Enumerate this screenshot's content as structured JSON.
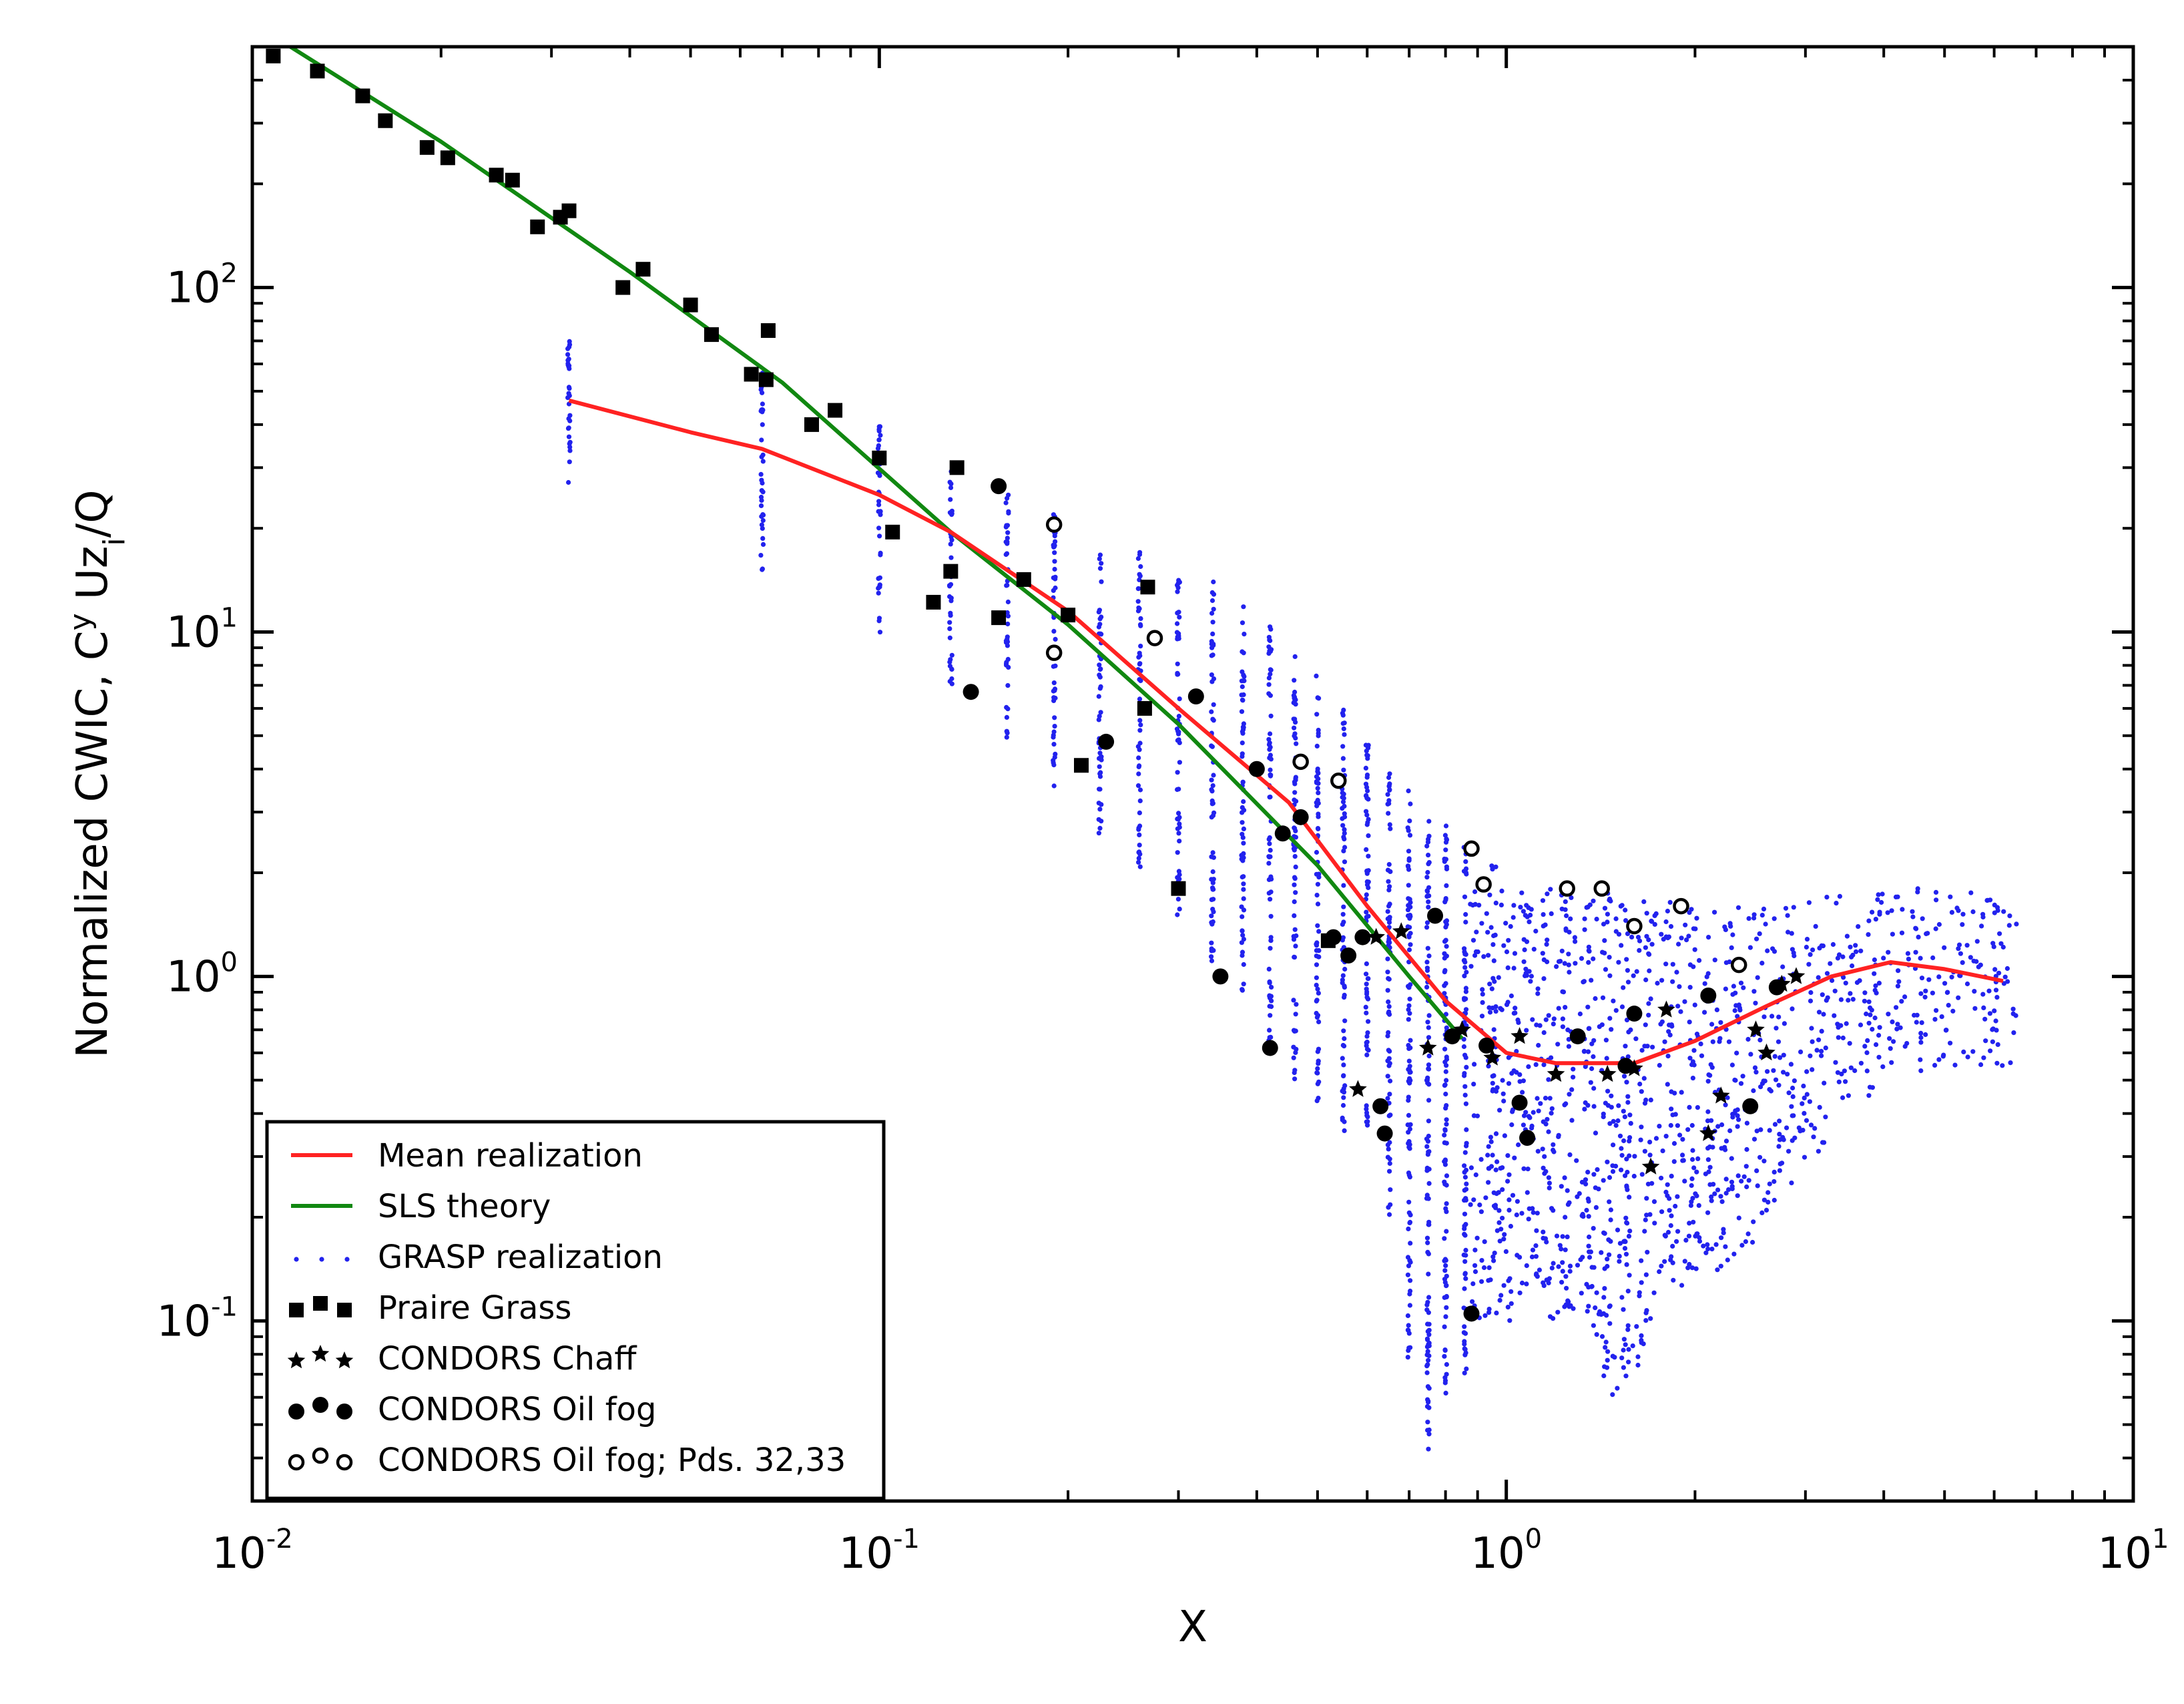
{
  "chart_data": {
    "type": "scatter",
    "xscale": "log",
    "yscale": "log",
    "xlim": [
      0.01,
      10
    ],
    "ylim": [
      0.03,
      500
    ],
    "xlabel": "X",
    "ylabel": {
      "prefix": "Normalized CWIC, C",
      "sup": "y",
      "mid": " Uz",
      "sub": "i",
      "suffix": "/Q"
    },
    "xticks": [
      {
        "value": 0.01,
        "base": "10",
        "exp": "-2"
      },
      {
        "value": 0.1,
        "base": "10",
        "exp": "-1"
      },
      {
        "value": 1,
        "base": "10",
        "exp": "0"
      },
      {
        "value": 10,
        "base": "10",
        "exp": "1"
      }
    ],
    "yticks": [
      {
        "value": 0.1,
        "base": "10",
        "exp": "-1"
      },
      {
        "value": 1,
        "base": "10",
        "exp": "0"
      },
      {
        "value": 10,
        "base": "10",
        "exp": "1"
      },
      {
        "value": 100,
        "base": "10",
        "exp": "2"
      }
    ],
    "legend": {
      "placement": "lower-left",
      "entries": [
        {
          "label": "Mean realization",
          "kind": "line",
          "color": "#ff2222"
        },
        {
          "label": "SLS theory",
          "kind": "line",
          "color": "#118811"
        },
        {
          "label": "GRASP realization",
          "kind": "dots",
          "color": "#2222ee"
        },
        {
          "label": "Praire Grass",
          "kind": "square",
          "color": "#000000"
        },
        {
          "label": "CONDORS Chaff",
          "kind": "star",
          "color": "#000000"
        },
        {
          "label": "CONDORS Oil fog",
          "kind": "circle",
          "color": "#000000"
        },
        {
          "label": "CONDORS Oil fog; Pds. 32,33",
          "kind": "open-circle",
          "color": "#000000"
        }
      ]
    },
    "series": [
      {
        "name": "SLS theory",
        "kind": "line",
        "color": "#118811",
        "points": [
          [
            0.0115,
            500
          ],
          [
            0.02,
            265
          ],
          [
            0.04,
            111
          ],
          [
            0.07,
            53
          ],
          [
            0.13,
            19.5
          ],
          [
            0.2,
            10.5
          ],
          [
            0.3,
            5.4
          ],
          [
            0.5,
            2.1
          ],
          [
            0.7,
            1.0
          ],
          [
            0.85,
            0.66
          ]
        ]
      },
      {
        "name": "Mean realization",
        "kind": "line",
        "color": "#ff2222",
        "points": [
          [
            0.032,
            47
          ],
          [
            0.05,
            38
          ],
          [
            0.065,
            34
          ],
          [
            0.1,
            25
          ],
          [
            0.13,
            19.5
          ],
          [
            0.2,
            11.5
          ],
          [
            0.3,
            6.0
          ],
          [
            0.45,
            3.2
          ],
          [
            0.6,
            1.6
          ],
          [
            0.8,
            0.85
          ],
          [
            1.0,
            0.6
          ],
          [
            1.2,
            0.56
          ],
          [
            1.6,
            0.56
          ],
          [
            2.0,
            0.65
          ],
          [
            2.6,
            0.82
          ],
          [
            3.3,
            1.0
          ],
          [
            4.1,
            1.1
          ],
          [
            5.0,
            1.05
          ],
          [
            6.2,
            0.97
          ]
        ]
      },
      {
        "name": "GRASP realization",
        "kind": "dots",
        "color": "#2222ee",
        "columns": [
          [
            0.032,
            27,
            70
          ],
          [
            0.065,
            15,
            70
          ],
          [
            0.1,
            9.3,
            40
          ],
          [
            0.13,
            7,
            30
          ],
          [
            0.16,
            4.9,
            26
          ],
          [
            0.19,
            3.5,
            22
          ],
          [
            0.225,
            2.6,
            19
          ],
          [
            0.26,
            2.0,
            18
          ],
          [
            0.3,
            1.5,
            16
          ],
          [
            0.34,
            1.1,
            14
          ],
          [
            0.38,
            0.9,
            12
          ],
          [
            0.42,
            0.6,
            10.5
          ],
          [
            0.46,
            0.5,
            9
          ],
          [
            0.5,
            0.42,
            7.5
          ],
          [
            0.55,
            0.35,
            6
          ],
          [
            0.6,
            0.3,
            5
          ],
          [
            0.65,
            0.2,
            4
          ],
          [
            0.7,
            0.078,
            3.5
          ],
          [
            0.75,
            0.042,
            3
          ],
          [
            0.8,
            0.055,
            2.8
          ],
          [
            0.86,
            0.07,
            2.4
          ],
          [
            0.92,
            0.1,
            2.1
          ],
          [
            0.98,
            0.1,
            1.9
          ],
          [
            1.05,
            0.12,
            1.8
          ],
          [
            1.12,
            0.12,
            1.8
          ],
          [
            1.2,
            0.1,
            1.8
          ],
          [
            1.3,
            0.1,
            1.75
          ],
          [
            1.4,
            0.09,
            1.75
          ],
          [
            1.5,
            0.06,
            1.7
          ],
          [
            1.6,
            0.07,
            1.7
          ],
          [
            1.75,
            0.1,
            1.7
          ],
          [
            1.9,
            0.12,
            1.65
          ],
          [
            2.05,
            0.13,
            1.6
          ],
          [
            2.2,
            0.14,
            1.6
          ],
          [
            2.4,
            0.16,
            1.6
          ],
          [
            2.6,
            0.2,
            1.6
          ],
          [
            2.85,
            0.25,
            1.65
          ],
          [
            3.1,
            0.3,
            1.7
          ],
          [
            3.4,
            0.38,
            1.75
          ],
          [
            3.7,
            0.45,
            1.78
          ],
          [
            4.0,
            0.5,
            1.8
          ],
          [
            4.4,
            0.5,
            1.8
          ],
          [
            4.8,
            0.55,
            1.78
          ],
          [
            5.3,
            0.52,
            1.75
          ],
          [
            5.8,
            0.52,
            1.7
          ],
          [
            6.2,
            0.55,
            1.65
          ]
        ]
      },
      {
        "name": "Praire Grass",
        "kind": "square",
        "color": "#000000",
        "points": [
          [
            0.0108,
            470
          ],
          [
            0.0127,
            425
          ],
          [
            0.015,
            360
          ],
          [
            0.0163,
            305
          ],
          [
            0.019,
            255
          ],
          [
            0.0205,
            238
          ],
          [
            0.0245,
            212
          ],
          [
            0.026,
            205
          ],
          [
            0.0285,
            150
          ],
          [
            0.031,
            160
          ],
          [
            0.032,
            167
          ],
          [
            0.039,
            100
          ],
          [
            0.042,
            113
          ],
          [
            0.05,
            89
          ],
          [
            0.054,
            73
          ],
          [
            0.0625,
            56
          ],
          [
            0.066,
            54
          ],
          [
            0.0665,
            75
          ],
          [
            0.078,
            40
          ],
          [
            0.085,
            44
          ],
          [
            0.1,
            32
          ],
          [
            0.105,
            19.5
          ],
          [
            0.122,
            12.2
          ],
          [
            0.13,
            15
          ],
          [
            0.133,
            30
          ],
          [
            0.155,
            11
          ],
          [
            0.17,
            14.2
          ],
          [
            0.2,
            11.2
          ],
          [
            0.21,
            4.1
          ],
          [
            0.265,
            6.0
          ],
          [
            0.268,
            13.5
          ],
          [
            0.3,
            1.8
          ],
          [
            0.52,
            1.27
          ]
        ]
      },
      {
        "name": "CONDORS Chaff",
        "kind": "star",
        "color": "#000000",
        "points": [
          [
            0.58,
            0.47
          ],
          [
            0.62,
            1.3
          ],
          [
            0.68,
            1.35
          ],
          [
            0.75,
            0.62
          ],
          [
            0.85,
            0.7
          ],
          [
            0.95,
            0.58
          ],
          [
            1.05,
            0.67
          ],
          [
            1.2,
            0.52
          ],
          [
            1.45,
            0.52
          ],
          [
            1.6,
            0.54
          ],
          [
            1.7,
            0.28
          ],
          [
            1.8,
            0.8
          ],
          [
            2.1,
            0.35
          ],
          [
            2.2,
            0.45
          ],
          [
            2.6,
            0.6
          ],
          [
            2.75,
            0.95
          ],
          [
            2.9,
            1.0
          ],
          [
            2.5,
            0.7
          ]
        ]
      },
      {
        "name": "CONDORS Oil fog",
        "kind": "circle",
        "color": "#000000",
        "points": [
          [
            0.14,
            6.7
          ],
          [
            0.155,
            26.5
          ],
          [
            0.23,
            4.8
          ],
          [
            0.32,
            6.5
          ],
          [
            0.35,
            1.0
          ],
          [
            0.4,
            4.0
          ],
          [
            0.42,
            0.62
          ],
          [
            0.44,
            2.6
          ],
          [
            0.47,
            2.9
          ],
          [
            0.53,
            1.3
          ],
          [
            0.56,
            1.15
          ],
          [
            0.59,
            1.3
          ],
          [
            0.63,
            0.42
          ],
          [
            0.64,
            0.35
          ],
          [
            0.77,
            1.5
          ],
          [
            0.82,
            0.67
          ],
          [
            0.88,
            0.105
          ],
          [
            0.93,
            0.63
          ],
          [
            1.08,
            0.34
          ],
          [
            1.3,
            0.67
          ],
          [
            1.55,
            0.55
          ],
          [
            1.6,
            0.78
          ],
          [
            2.1,
            0.88
          ],
          [
            2.45,
            0.42
          ],
          [
            2.7,
            0.93
          ],
          [
            1.05,
            0.43
          ]
        ]
      },
      {
        "name": "CONDORS Oil fog; Pds. 32,33",
        "kind": "open-circle",
        "color": "#000000",
        "points": [
          [
            0.19,
            20.5
          ],
          [
            0.19,
            8.7
          ],
          [
            0.275,
            9.6
          ],
          [
            0.47,
            4.2
          ],
          [
            0.54,
            3.7
          ],
          [
            0.88,
            2.35
          ],
          [
            0.92,
            1.85
          ],
          [
            1.25,
            1.8
          ],
          [
            1.42,
            1.8
          ],
          [
            1.6,
            1.4
          ],
          [
            1.9,
            1.6
          ],
          [
            2.35,
            1.08
          ]
        ]
      }
    ]
  }
}
